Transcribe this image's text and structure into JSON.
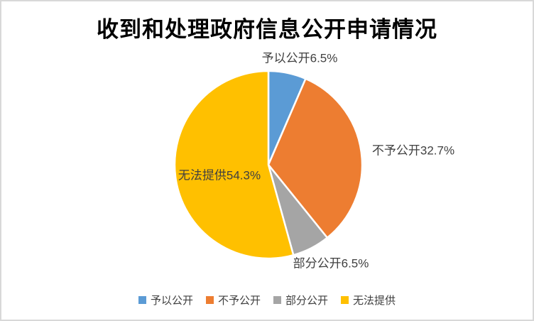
{
  "title": "收到和处理政府信息公开申请情况",
  "chart_data": {
    "type": "pie",
    "title": "收到和处理政府信息公开申请情况",
    "categories": [
      "予以公开",
      "不予公开",
      "部分公开",
      "无法提供"
    ],
    "values": [
      6.5,
      32.7,
      6.5,
      54.3
    ],
    "unit": "%",
    "colors": [
      "#5B9BD5",
      "#ED7D31",
      "#A5A5A5",
      "#FFC000"
    ],
    "start_angle_deg": 0,
    "direction": "clockwise",
    "legend_position": "bottom",
    "slice_border_color": "#FFFFFF",
    "label_color": "#404040",
    "labels": [
      "予以公开6.5%",
      "不予公开32.7%",
      "部分公开6.5%",
      "无法提供54.3%"
    ]
  },
  "legend": {
    "items": [
      {
        "label": "予以公开",
        "color": "#5B9BD5"
      },
      {
        "label": "不予公开",
        "color": "#ED7D31"
      },
      {
        "label": "部分公开",
        "color": "#A5A5A5"
      },
      {
        "label": "无法提供",
        "color": "#FFC000"
      }
    ]
  }
}
